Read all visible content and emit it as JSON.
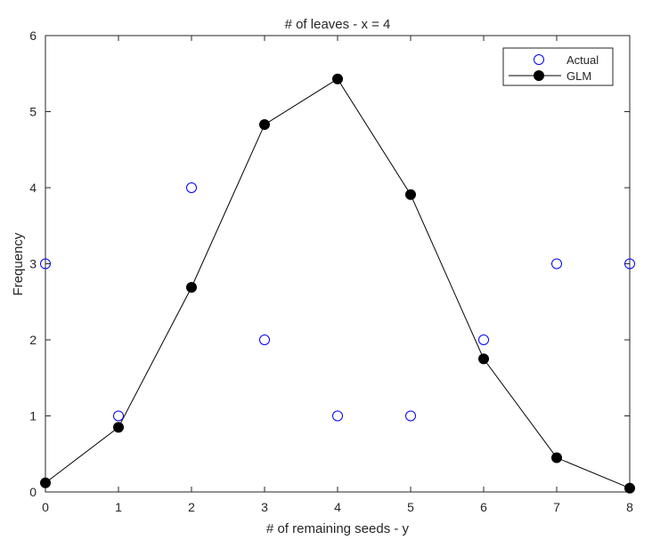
{
  "chart_data": {
    "type": "line",
    "title": "# of leaves - x = 4",
    "xlabel": "# of remaining seeds - y",
    "ylabel": "Frequency",
    "xlim": [
      0,
      8
    ],
    "ylim": [
      0,
      6
    ],
    "xticks": [
      "0",
      "1",
      "2",
      "3",
      "4",
      "5",
      "6",
      "7",
      "8"
    ],
    "yticks": [
      "0",
      "1",
      "2",
      "3",
      "4",
      "5",
      "6"
    ],
    "grid": false,
    "legend_position": "upper right",
    "x": [
      0,
      1,
      2,
      3,
      4,
      5,
      6,
      7,
      8
    ],
    "series": [
      {
        "name": "Actual",
        "style": "scatter-open-circle",
        "color": "#0000ff",
        "values": [
          3,
          1,
          4,
          2,
          1,
          1,
          2,
          3,
          3
        ]
      },
      {
        "name": "GLM",
        "style": "line-filled-circle",
        "color": "#000000",
        "values": [
          0.12,
          0.85,
          2.69,
          4.83,
          5.43,
          3.91,
          1.75,
          0.45,
          0.05
        ]
      }
    ]
  }
}
